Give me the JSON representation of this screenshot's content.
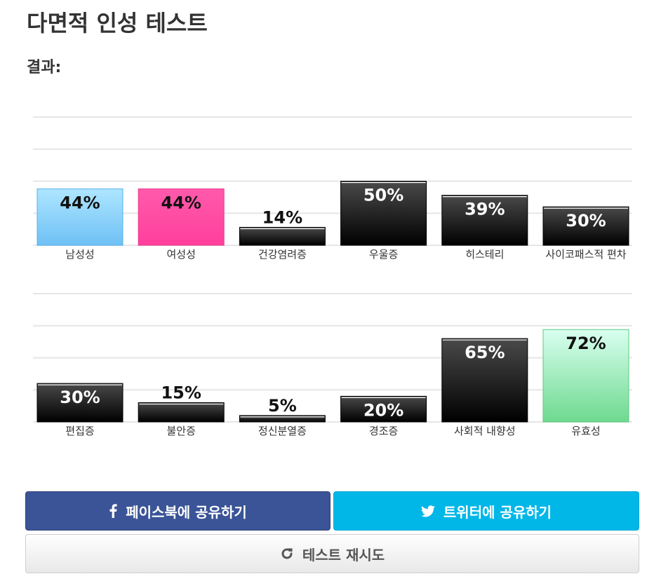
{
  "page": {
    "title": "다면적 인성 테스트",
    "result_label": "결과:"
  },
  "chart_data": [
    {
      "type": "bar",
      "categories": [
        "남성성",
        "여성성",
        "건강염려증",
        "우울증",
        "히스테리",
        "사이코패스적 편차"
      ],
      "values": [
        44,
        44,
        14,
        50,
        39,
        30
      ],
      "value_labels": [
        "44%",
        "44%",
        "14%",
        "50%",
        "39%",
        "30%"
      ],
      "bar_styles": [
        "blue",
        "pink",
        "dark",
        "dark",
        "dark",
        "dark"
      ],
      "ylim": [
        0,
        100
      ],
      "grid": true
    },
    {
      "type": "bar",
      "categories": [
        "편집증",
        "불안증",
        "정신분열증",
        "경조증",
        "사회적 내향성",
        "유효성"
      ],
      "values": [
        30,
        15,
        5,
        20,
        65,
        72
      ],
      "value_labels": [
        "30%",
        "15%",
        "5%",
        "20%",
        "65%",
        "72%"
      ],
      "bar_styles": [
        "dark",
        "dark",
        "dark",
        "dark",
        "dark",
        "green"
      ],
      "ylim": [
        0,
        100
      ],
      "grid": true
    }
  ],
  "colors": {
    "blue": [
      "#aee6ff",
      "#6ec0f5"
    ],
    "pink": [
      "#ff5aab",
      "#ff3f9c"
    ],
    "dark": [
      "#4a4a4a",
      "#000000"
    ],
    "green": [
      "#d9fff0",
      "#6ed98f"
    ],
    "facebook": "#3b5497",
    "twitter": "#00b7e8"
  },
  "buttons": {
    "facebook_label": "페이스북에 공유하기",
    "twitter_label": "트위터에 공유하기",
    "retry_label": "테스트 재시도",
    "facebook_icon": "facebook-icon",
    "twitter_icon": "twitter-icon",
    "retry_icon": "refresh-icon"
  }
}
